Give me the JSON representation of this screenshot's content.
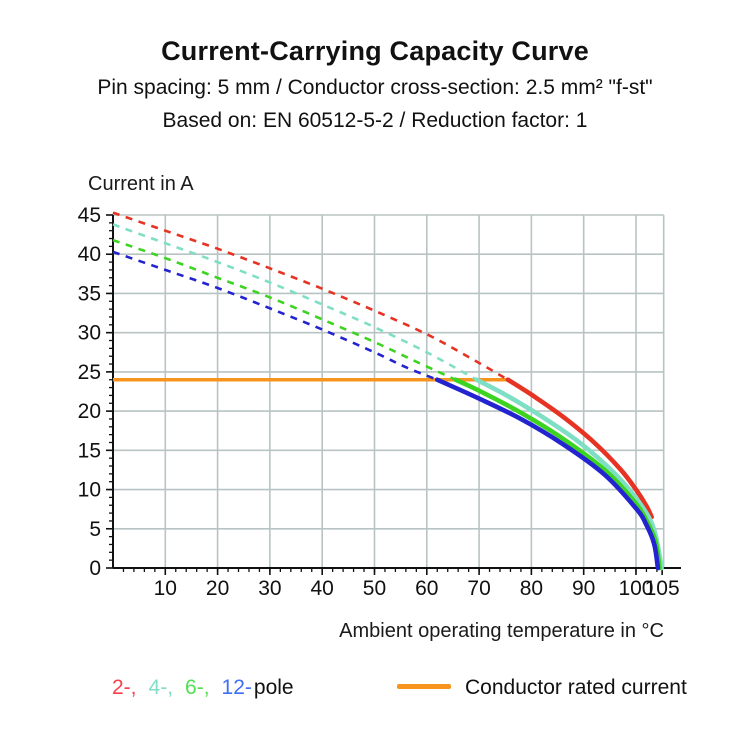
{
  "header": {
    "title": "Current-Carrying Capacity Curve",
    "subtitle1": "Pin spacing: 5 mm / Conductor cross-section: 2.5 mm² \"f-st\"",
    "subtitle2": "Based on: EN 60512-5-2 / Reduction factor: 1"
  },
  "chart_data": {
    "type": "line",
    "title": "Current-Carrying Capacity Curve",
    "xlabel": "Ambient operating temperature in °C",
    "ylabel": "Current in A",
    "xlim": [
      0,
      105.3
    ],
    "ylim": [
      0,
      45
    ],
    "x_gridlines": [
      10,
      20,
      30,
      40,
      50,
      60,
      70,
      80,
      90,
      100
    ],
    "x_tick_labels": [
      10,
      20,
      30,
      40,
      50,
      60,
      70,
      80,
      90,
      100,
      105
    ],
    "x_minor_tick_step": 2,
    "y_tick_labels": [
      0,
      5,
      10,
      15,
      20,
      25,
      30,
      35,
      40,
      45
    ],
    "y_minor_tick_step": 1,
    "grid_on": true,
    "grid_color": "#b8c3c3",
    "axis_color": "#111111",
    "rated_current_line": {
      "label": "Conductor rated current",
      "value_amps": 24,
      "x_start": 0,
      "x_end": 75.5,
      "color": "#f7941e"
    },
    "series": [
      {
        "name": "2-pole",
        "color": "#e63323",
        "dashed_points": [
          [
            0,
            45.3
          ],
          [
            10,
            43.0
          ],
          [
            20,
            40.7
          ],
          [
            30,
            38.2
          ],
          [
            40,
            35.6
          ],
          [
            50,
            32.8
          ],
          [
            60,
            29.8
          ],
          [
            68,
            26.9
          ],
          [
            75.5,
            24
          ]
        ],
        "solid_points": [
          [
            75.5,
            24
          ],
          [
            80,
            22.1
          ],
          [
            86,
            19.3
          ],
          [
            92,
            16.0
          ],
          [
            97,
            12.6
          ],
          [
            100,
            10.0
          ],
          [
            102,
            7.9
          ],
          [
            103,
            6.5
          ]
        ]
      },
      {
        "name": "4-pole",
        "color": "#7fdfc5",
        "dashed_points": [
          [
            0,
            43.8
          ],
          [
            10,
            41.4
          ],
          [
            20,
            39.0
          ],
          [
            30,
            36.4
          ],
          [
            40,
            33.6
          ],
          [
            50,
            30.7
          ],
          [
            60,
            27.5
          ],
          [
            69.5,
            24
          ]
        ],
        "solid_points": [
          [
            69.5,
            24
          ],
          [
            75,
            22.1
          ],
          [
            82,
            19.3
          ],
          [
            89,
            16.1
          ],
          [
            96,
            12.0
          ],
          [
            101,
            8.0
          ],
          [
            103.5,
            4.8
          ],
          [
            104.9,
            0
          ]
        ]
      },
      {
        "name": "6-pole",
        "color": "#3dd321",
        "dashed_points": [
          [
            0,
            41.8
          ],
          [
            10,
            39.5
          ],
          [
            20,
            37.0
          ],
          [
            30,
            34.5
          ],
          [
            40,
            31.7
          ],
          [
            50,
            28.8
          ],
          [
            58,
            26.3
          ],
          [
            65.5,
            24
          ]
        ],
        "solid_points": [
          [
            65.5,
            24
          ],
          [
            70,
            22.6
          ],
          [
            78,
            19.8
          ],
          [
            86,
            16.5
          ],
          [
            94,
            12.5
          ],
          [
            100,
            8.2
          ],
          [
            102.5,
            5.4
          ],
          [
            103.8,
            3.2
          ],
          [
            104.5,
            0
          ]
        ]
      },
      {
        "name": "12-pole",
        "color": "#2323cf",
        "dashed_points": [
          [
            0,
            40.3
          ],
          [
            10,
            38.0
          ],
          [
            20,
            35.7
          ],
          [
            30,
            33.1
          ],
          [
            40,
            30.4
          ],
          [
            50,
            27.5
          ],
          [
            56,
            25.6
          ],
          [
            62,
            24
          ]
        ],
        "solid_points": [
          [
            62,
            24
          ],
          [
            70,
            21.6
          ],
          [
            78,
            19.0
          ],
          [
            86,
            15.8
          ],
          [
            94,
            11.9
          ],
          [
            100,
            7.6
          ],
          [
            102,
            5.5
          ],
          [
            103.5,
            3.0
          ],
          [
            104.2,
            0
          ]
        ]
      }
    ]
  },
  "legend": {
    "pole_items": [
      {
        "label": "2-,",
        "color": "#f8414b"
      },
      {
        "label": "4-,",
        "color": "#7fdfc5"
      },
      {
        "label": "6-,",
        "color": "#52e052"
      },
      {
        "label": "12-",
        "color": "#3f6ff2"
      }
    ],
    "pole_suffix": "pole",
    "rated_label": "Conductor rated current",
    "rated_color": "#f7941e"
  }
}
